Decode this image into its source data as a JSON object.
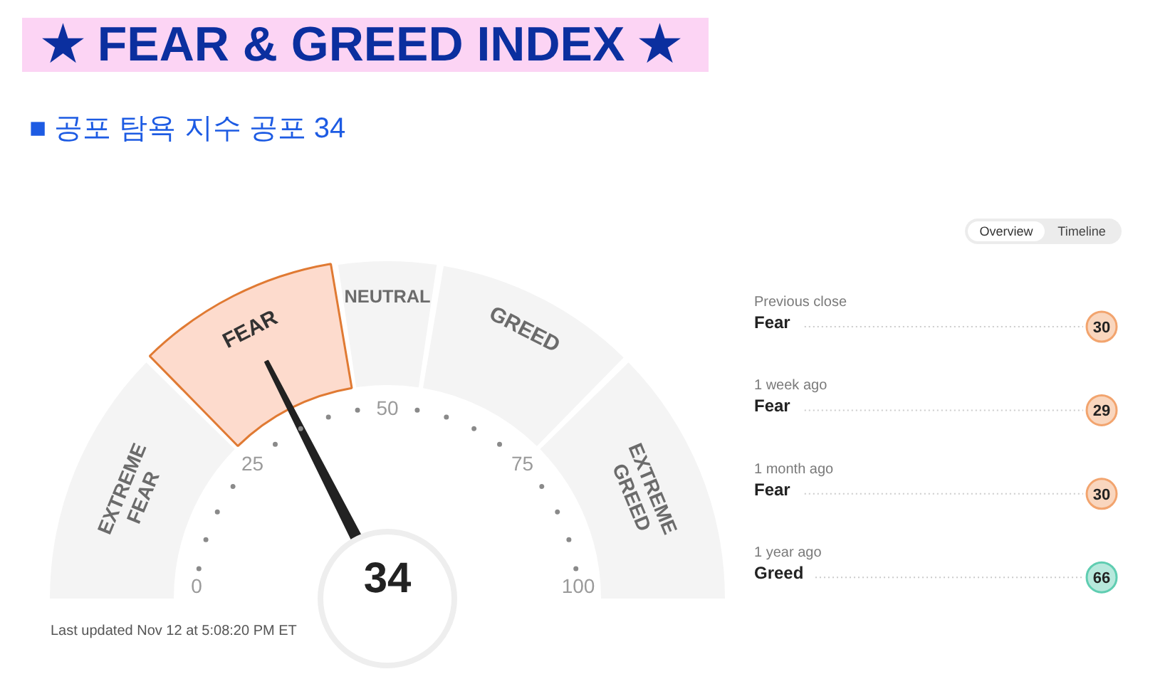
{
  "chart_data": [
    {
      "type": "donut",
      "title": "★ FEAR & GREED INDEX ★",
      "subtitle": "■ 공포 탐욕 지수 공포 34",
      "categories": [
        "EXTREME FEAR",
        "FEAR",
        "NEUTRAL",
        "GREED",
        "EXTREME GREED"
      ],
      "values": [
        25,
        20,
        10,
        20,
        25
      ],
      "colors": [
        "#f4f4f4",
        "#fddbcd",
        "#f4f4f4",
        "#f4f4f4",
        "#f4f4f4"
      ],
      "needle": "FEAR",
      "annotations": [
        "34",
        "0",
        "25",
        "50",
        "75",
        "100",
        "Last updated Nov 12 at 5:08:20 PM ET"
      ]
    },
    {
      "type": "other",
      "categories": [
        "Previous close",
        "1 week ago",
        "1 month ago",
        "1 year ago"
      ],
      "series": [
        {
          "values": [
            30,
            29,
            30,
            66
          ],
          "colors": [
            "#f2a46e",
            "#f2a46e",
            "#f2a46e",
            "#5fcdb1"
          ]
        }
      ],
      "data_labels": true,
      "annotations": [
        "Overview",
        "Timeline",
        {
          "text": "Fear",
          "x": "Previous close"
        },
        {
          "text": "Fear",
          "x": "1 week ago"
        },
        {
          "text": "Fear",
          "x": "1 month ago"
        },
        {
          "text": "Greed",
          "x": "1 year ago"
        }
      ]
    }
  ]
}
